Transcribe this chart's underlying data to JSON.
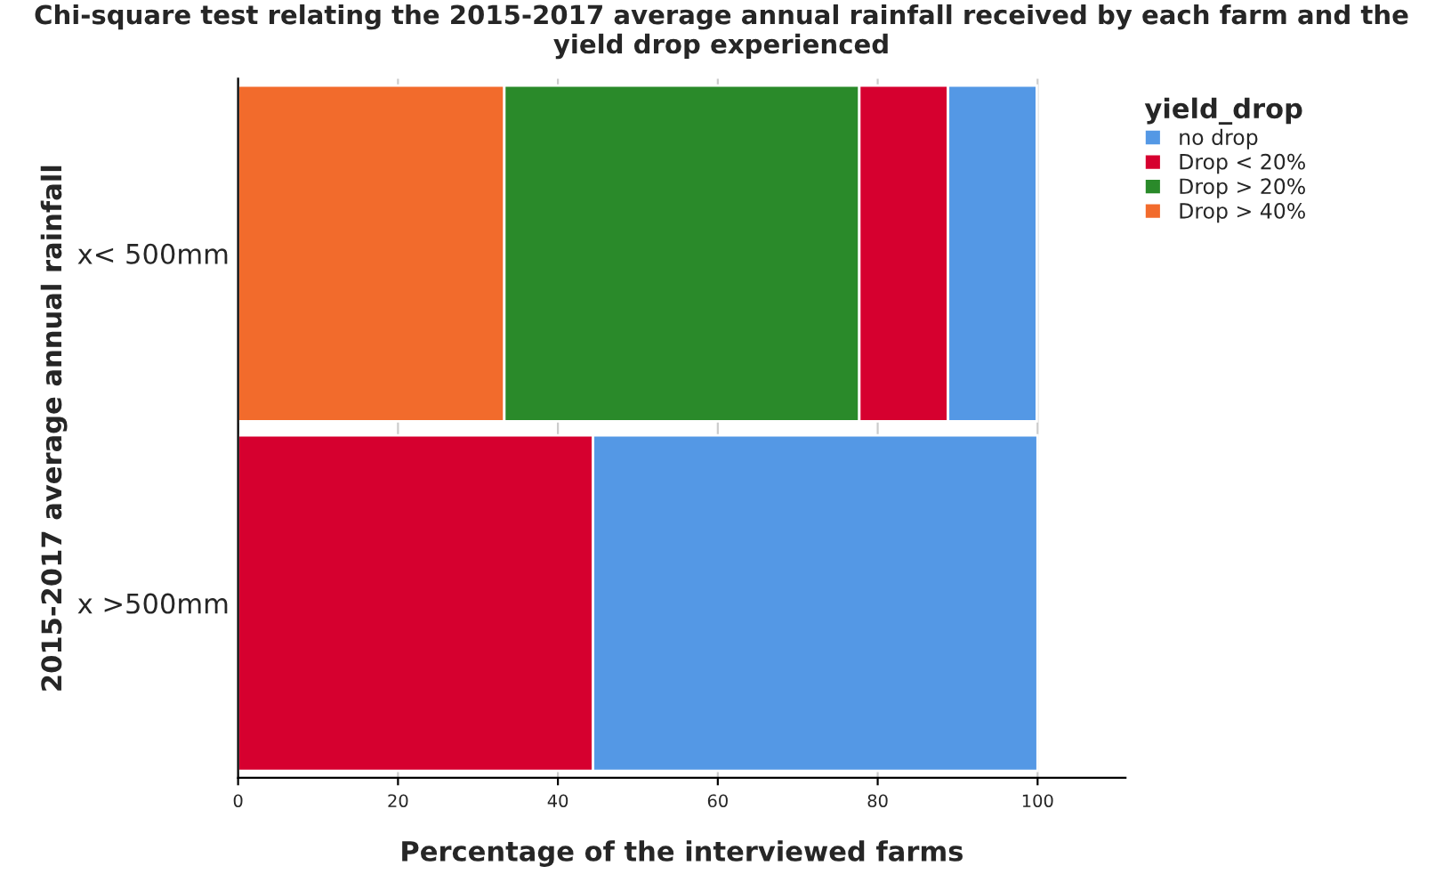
{
  "chart_data": {
    "type": "bar",
    "orientation": "horizontal",
    "stacked": true,
    "title": "Chi-square test relating the 2015-2017 average annual rainfall received by each farm and the yield drop experienced",
    "xlabel": "Percentage of the interviewed farms",
    "ylabel": "2015-2017 average annual rainfall",
    "legend_title": "yield_drop",
    "legend": "right",
    "grid": "x",
    "categories": [
      "x< 500mm",
      "x >500mm"
    ],
    "series": [
      {
        "name": "Drop > 40%",
        "color": "#f26b2c",
        "values": [
          33.3,
          0
        ]
      },
      {
        "name": "Drop > 20%",
        "color": "#2a8a2a",
        "values": [
          44.4,
          0
        ]
      },
      {
        "name": "Drop < 20%",
        "color": "#d6002f",
        "values": [
          11.1,
          44.4
        ]
      },
      {
        "name": "no drop",
        "color": "#5498e5",
        "values": [
          11.1,
          55.6
        ]
      }
    ],
    "xlim": [
      0,
      111
    ],
    "xticks": [
      0,
      20,
      40,
      60,
      80,
      100
    ]
  }
}
